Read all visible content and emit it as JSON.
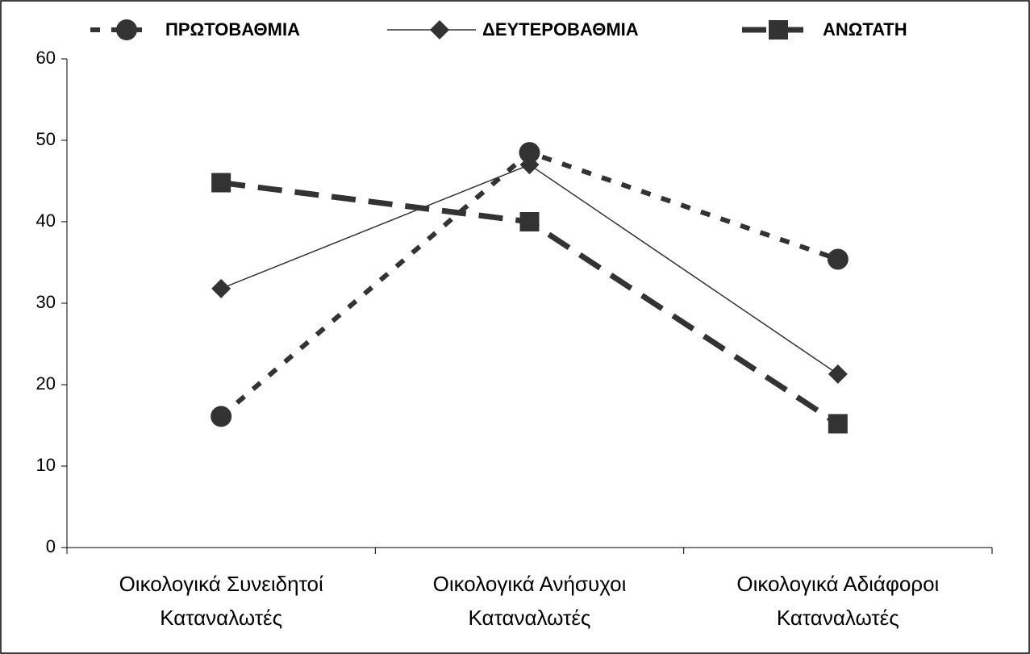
{
  "chart_data": {
    "type": "line",
    "categories": [
      [
        "Οικολογικά Συνειδητοί",
        "Καταναλωτές"
      ],
      [
        "Οικολογικά Ανήσυχοι",
        "Καταναλωτές"
      ],
      [
        "Οικολογικά Αδιάφοροι",
        "Καταναλωτές"
      ]
    ],
    "series": [
      {
        "name": "ΠΡΩΤΟΒΑΘΜΙΑ",
        "color": "#333333",
        "marker": "circle",
        "line_style": "short-dash",
        "values": [
          16.1,
          48.5,
          35.4
        ]
      },
      {
        "name": "ΔΕΥΤΕΡΟΒΑΘΜΙΑ",
        "color": "#333333",
        "marker": "diamond",
        "line_style": "solid",
        "values": [
          31.8,
          47,
          21.3
        ]
      },
      {
        "name": "ΑΝΩΤΑΤΗ",
        "color": "#333333",
        "marker": "square",
        "line_style": "long-dash",
        "values": [
          44.8,
          40,
          15.2
        ]
      }
    ],
    "ylim": [
      0,
      60
    ],
    "yticks": [
      0,
      10,
      20,
      30,
      40,
      50,
      60
    ],
    "grid": false,
    "legend": "top"
  }
}
